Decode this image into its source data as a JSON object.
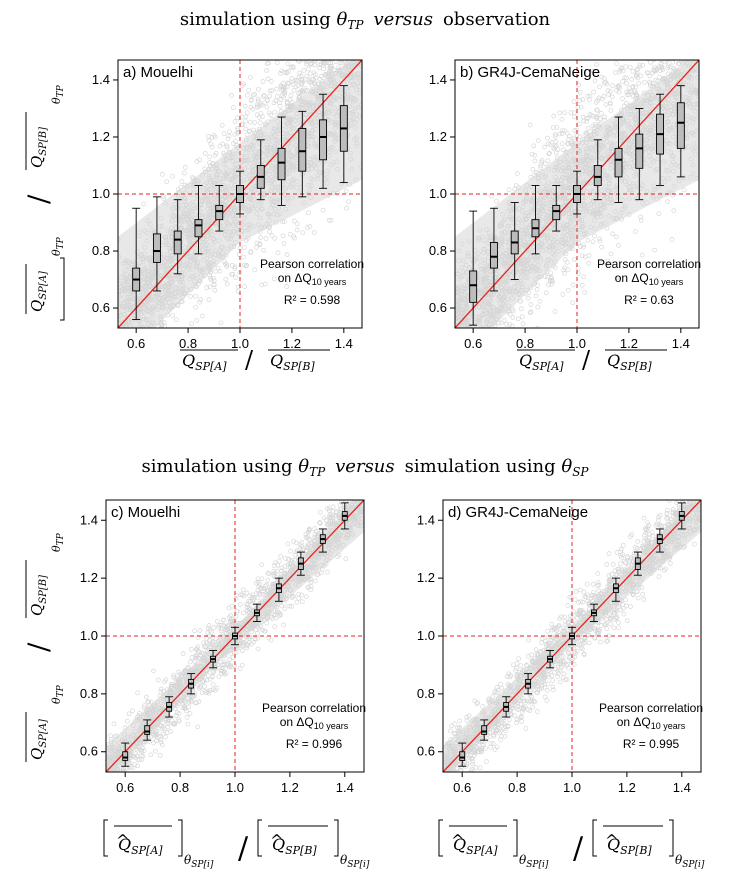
{
  "titles": {
    "top": {
      "pre": "simulation using ",
      "theta": "θ",
      "sub": "TP",
      "versus": "versus",
      "post": "observation"
    },
    "bottom": {
      "pre": "simulation using ",
      "theta": "θ",
      "sub": "TP",
      "versus": "versus",
      "mid": "simulation using ",
      "theta2": "θ",
      "sub2": "SP"
    }
  },
  "labels": {
    "ylabel_top": "[Q̂_SP[A]]_θTP / [Q̂_SP[B]]_θTP",
    "xlabel_top": "Q_SP[A] / Q_SP[B]",
    "xlabel_bottom": "[Q̂_SP[A]]_θSP[i] / [Q̂_SP[B]]_θSP[i]",
    "ylabel_bottom": "[Q̂_SP[A]]_θTP / [Q̂_SP[B]]_θTP",
    "Q": "Q",
    "theta": "θ",
    "sub_A": "SP[A]",
    "sub_B": "SP[B]",
    "sub_TP": "TP",
    "sub_SPi": "SP[i]",
    "slash": "/"
  },
  "annotation": {
    "line1": "Pearson correlation",
    "line2_pre": "on ",
    "line2_delta": "ΔQ",
    "line2_sub": "10 years"
  },
  "chart_data": [
    {
      "type": "scatter",
      "title": "a) Mouelhi",
      "xlim": [
        0.53,
        1.47
      ],
      "ylim": [
        0.53,
        1.47
      ],
      "xticks": [
        0.6,
        0.8,
        1.0,
        1.2,
        1.4
      ],
      "yticks": [
        0.6,
        0.8,
        1.0,
        1.2,
        1.4
      ],
      "tick_labels": [
        "0.6",
        "0.8",
        "1.0",
        "1.2",
        "1.4"
      ],
      "r2": "R² = 0.598",
      "boxes": [
        {
          "x": 0.6,
          "wlo": 0.56,
          "q1": 0.66,
          "med": 0.7,
          "q3": 0.74,
          "whi": 0.95
        },
        {
          "x": 0.68,
          "wlo": 0.66,
          "q1": 0.76,
          "med": 0.8,
          "q3": 0.86,
          "whi": 0.99
        },
        {
          "x": 0.76,
          "wlo": 0.72,
          "q1": 0.79,
          "med": 0.84,
          "q3": 0.87,
          "whi": 0.98
        },
        {
          "x": 0.84,
          "wlo": 0.79,
          "q1": 0.85,
          "med": 0.89,
          "q3": 0.91,
          "whi": 1.03
        },
        {
          "x": 0.92,
          "wlo": 0.87,
          "q1": 0.91,
          "med": 0.94,
          "q3": 0.96,
          "whi": 1.03
        },
        {
          "x": 1.0,
          "wlo": 0.93,
          "q1": 0.97,
          "med": 1.0,
          "q3": 1.03,
          "whi": 1.08
        },
        {
          "x": 1.08,
          "wlo": 0.98,
          "q1": 1.02,
          "med": 1.06,
          "q3": 1.1,
          "whi": 1.19
        },
        {
          "x": 1.16,
          "wlo": 0.96,
          "q1": 1.05,
          "med": 1.11,
          "q3": 1.16,
          "whi": 1.27
        },
        {
          "x": 1.24,
          "wlo": 0.99,
          "q1": 1.08,
          "med": 1.15,
          "q3": 1.23,
          "whi": 1.29
        },
        {
          "x": 1.32,
          "wlo": 1.02,
          "q1": 1.12,
          "med": 1.2,
          "q3": 1.26,
          "whi": 1.35
        },
        {
          "x": 1.4,
          "wlo": 1.04,
          "q1": 1.15,
          "med": 1.23,
          "q3": 1.31,
          "whi": 1.38
        }
      ]
    },
    {
      "type": "scatter",
      "title": "b) GR4J-CemaNeige",
      "xlim": [
        0.53,
        1.47
      ],
      "ylim": [
        0.53,
        1.47
      ],
      "xticks": [
        0.6,
        0.8,
        1.0,
        1.2,
        1.4
      ],
      "yticks": [
        0.6,
        0.8,
        1.0,
        1.2,
        1.4
      ],
      "tick_labels": [
        "0.6",
        "0.8",
        "1.0",
        "1.2",
        "1.4"
      ],
      "r2": "R² = 0.63",
      "boxes": [
        {
          "x": 0.6,
          "wlo": 0.54,
          "q1": 0.62,
          "med": 0.68,
          "q3": 0.73,
          "whi": 0.94
        },
        {
          "x": 0.68,
          "wlo": 0.66,
          "q1": 0.74,
          "med": 0.78,
          "q3": 0.83,
          "whi": 0.95
        },
        {
          "x": 0.76,
          "wlo": 0.7,
          "q1": 0.79,
          "med": 0.83,
          "q3": 0.87,
          "whi": 0.97
        },
        {
          "x": 0.84,
          "wlo": 0.79,
          "q1": 0.85,
          "med": 0.88,
          "q3": 0.91,
          "whi": 1.03
        },
        {
          "x": 0.92,
          "wlo": 0.87,
          "q1": 0.91,
          "med": 0.94,
          "q3": 0.96,
          "whi": 1.03
        },
        {
          "x": 1.0,
          "wlo": 0.93,
          "q1": 0.97,
          "med": 1.0,
          "q3": 1.03,
          "whi": 1.08
        },
        {
          "x": 1.08,
          "wlo": 0.98,
          "q1": 1.03,
          "med": 1.06,
          "q3": 1.1,
          "whi": 1.19
        },
        {
          "x": 1.16,
          "wlo": 0.97,
          "q1": 1.06,
          "med": 1.12,
          "q3": 1.16,
          "whi": 1.27
        },
        {
          "x": 1.24,
          "wlo": 0.98,
          "q1": 1.09,
          "med": 1.16,
          "q3": 1.21,
          "whi": 1.3
        },
        {
          "x": 1.32,
          "wlo": 1.03,
          "q1": 1.14,
          "med": 1.21,
          "q3": 1.28,
          "whi": 1.35
        },
        {
          "x": 1.4,
          "wlo": 1.06,
          "q1": 1.16,
          "med": 1.25,
          "q3": 1.32,
          "whi": 1.38
        }
      ]
    },
    {
      "type": "scatter",
      "title": "c) Mouelhi",
      "xlim": [
        0.53,
        1.47
      ],
      "ylim": [
        0.53,
        1.47
      ],
      "xticks": [
        0.6,
        0.8,
        1.0,
        1.2,
        1.4
      ],
      "yticks": [
        0.6,
        0.8,
        1.0,
        1.2,
        1.4
      ],
      "tick_labels": [
        "0.6",
        "0.8",
        "1.0",
        "1.2",
        "1.4"
      ],
      "r2": "R² = 0.996",
      "boxes": [
        {
          "x": 0.6,
          "wlo": 0.55,
          "q1": 0.57,
          "med": 0.58,
          "q3": 0.6,
          "whi": 0.63
        },
        {
          "x": 0.68,
          "wlo": 0.64,
          "q1": 0.66,
          "med": 0.67,
          "q3": 0.69,
          "whi": 0.71
        },
        {
          "x": 0.76,
          "wlo": 0.72,
          "q1": 0.74,
          "med": 0.755,
          "q3": 0.77,
          "whi": 0.79
        },
        {
          "x": 0.84,
          "wlo": 0.8,
          "q1": 0.82,
          "med": 0.835,
          "q3": 0.85,
          "whi": 0.87
        },
        {
          "x": 0.92,
          "wlo": 0.89,
          "q1": 0.91,
          "med": 0.92,
          "q3": 0.93,
          "whi": 0.95
        },
        {
          "x": 1.0,
          "wlo": 0.97,
          "q1": 0.99,
          "med": 1.0,
          "q3": 1.01,
          "whi": 1.03
        },
        {
          "x": 1.08,
          "wlo": 1.05,
          "q1": 1.07,
          "med": 1.08,
          "q3": 1.09,
          "whi": 1.11
        },
        {
          "x": 1.16,
          "wlo": 1.12,
          "q1": 1.15,
          "med": 1.165,
          "q3": 1.18,
          "whi": 1.2
        },
        {
          "x": 1.24,
          "wlo": 1.21,
          "q1": 1.23,
          "med": 1.25,
          "q3": 1.27,
          "whi": 1.29
        },
        {
          "x": 1.32,
          "wlo": 1.29,
          "q1": 1.32,
          "med": 1.335,
          "q3": 1.35,
          "whi": 1.37
        },
        {
          "x": 1.4,
          "wlo": 1.37,
          "q1": 1.4,
          "med": 1.415,
          "q3": 1.43,
          "whi": 1.46
        }
      ]
    },
    {
      "type": "scatter",
      "title": "d) GR4J-CemaNeige",
      "xlim": [
        0.53,
        1.47
      ],
      "ylim": [
        0.53,
        1.47
      ],
      "xticks": [
        0.6,
        0.8,
        1.0,
        1.2,
        1.4
      ],
      "yticks": [
        0.6,
        0.8,
        1.0,
        1.2,
        1.4
      ],
      "tick_labels": [
        "0.6",
        "0.8",
        "1.0",
        "1.2",
        "1.4"
      ],
      "r2": "R² = 0.995",
      "boxes": [
        {
          "x": 0.6,
          "wlo": 0.55,
          "q1": 0.57,
          "med": 0.58,
          "q3": 0.6,
          "whi": 0.63
        },
        {
          "x": 0.68,
          "wlo": 0.64,
          "q1": 0.66,
          "med": 0.67,
          "q3": 0.69,
          "whi": 0.71
        },
        {
          "x": 0.76,
          "wlo": 0.72,
          "q1": 0.74,
          "med": 0.755,
          "q3": 0.77,
          "whi": 0.79
        },
        {
          "x": 0.84,
          "wlo": 0.8,
          "q1": 0.82,
          "med": 0.835,
          "q3": 0.85,
          "whi": 0.87
        },
        {
          "x": 0.92,
          "wlo": 0.89,
          "q1": 0.91,
          "med": 0.92,
          "q3": 0.93,
          "whi": 0.95
        },
        {
          "x": 1.0,
          "wlo": 0.97,
          "q1": 0.99,
          "med": 1.0,
          "q3": 1.01,
          "whi": 1.03
        },
        {
          "x": 1.08,
          "wlo": 1.05,
          "q1": 1.07,
          "med": 1.08,
          "q3": 1.09,
          "whi": 1.11
        },
        {
          "x": 1.16,
          "wlo": 1.12,
          "q1": 1.15,
          "med": 1.165,
          "q3": 1.18,
          "whi": 1.2
        },
        {
          "x": 1.24,
          "wlo": 1.21,
          "q1": 1.23,
          "med": 1.25,
          "q3": 1.27,
          "whi": 1.29
        },
        {
          "x": 1.32,
          "wlo": 1.29,
          "q1": 1.32,
          "med": 1.335,
          "q3": 1.35,
          "whi": 1.37
        },
        {
          "x": 1.4,
          "wlo": 1.37,
          "q1": 1.4,
          "med": 1.415,
          "q3": 1.43,
          "whi": 1.46
        }
      ]
    }
  ],
  "colors": {
    "cloud": "#d6d6d6",
    "box": "#bdbdbd",
    "line": "#e8231c",
    "ref": "#e8231c",
    "frame": "#000000"
  }
}
